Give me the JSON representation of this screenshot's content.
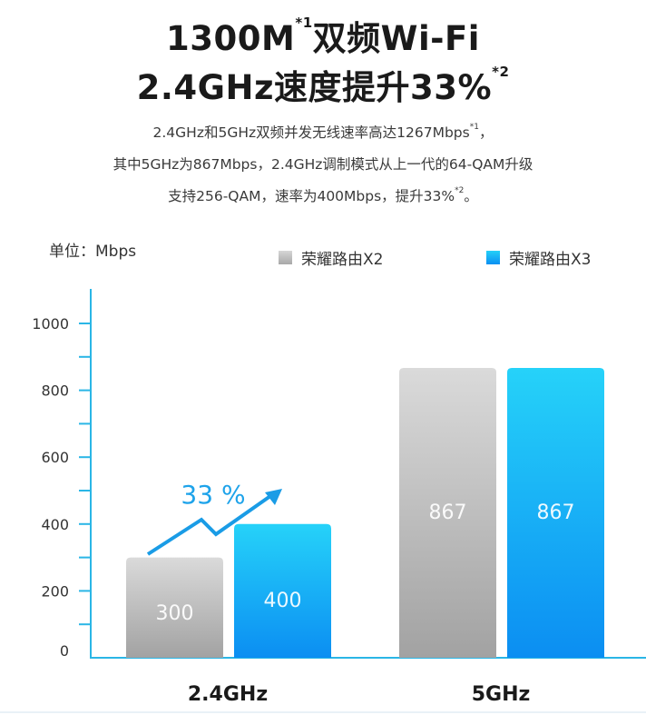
{
  "header": {
    "title_line1": "1300M",
    "title_line1_note": "*1",
    "title_line1_rest": "双频Wi-Fi",
    "title_line2": "2.4GHz速度提升33%",
    "title_line2_note": "*2",
    "sub_line1": "2.4GHz和5GHz双频并发无线速率高达1267Mbps",
    "sub_line1_note": "*1",
    "sub_line1_tail": "，",
    "sub_line2": "其中5GHz为867Mbps，2.4GHz调制模式从上一代的64-QAM升级",
    "sub_line3": "支持256-QAM，速率为400Mbps，提升33%",
    "sub_line3_note": "*2",
    "sub_line3_tail": "。"
  },
  "chart_data": {
    "type": "bar",
    "unit_label": "单位：Mbps",
    "categories": [
      "2.4GHz",
      "5GHz"
    ],
    "series": [
      {
        "name": "荣耀路由X2",
        "values": [
          300,
          867
        ]
      },
      {
        "name": "荣耀路由X3",
        "values": [
          400,
          867
        ]
      }
    ],
    "ylim": [
      0,
      1000
    ],
    "yticks": [
      0,
      200,
      400,
      600,
      800,
      1000
    ],
    "annotation": "33 %",
    "colors": {
      "x2_top": "#d9d9d9",
      "x2_bottom": "#a3a3a3",
      "x3_top": "#25d0f8",
      "x3_bottom": "#0a8ff2",
      "axis": "#2ab6e6",
      "arrow": "#1a9ce6"
    }
  }
}
